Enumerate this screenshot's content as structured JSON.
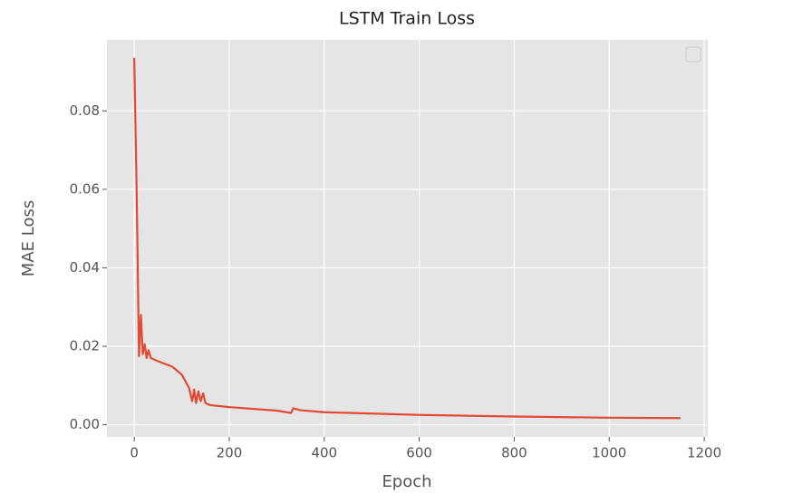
{
  "chart_data": {
    "type": "line",
    "title": "LSTM Train Loss",
    "x_label": "Epoch",
    "y_label": "MAE Loss",
    "x": [
      0,
      5,
      10,
      14,
      18,
      22,
      26,
      30,
      35,
      50,
      80,
      100,
      115,
      122,
      126,
      130,
      135,
      140,
      145,
      150,
      160,
      200,
      300,
      330,
      335,
      350,
      400,
      600,
      800,
      1000,
      1150
    ],
    "values": [
      0.0935,
      0.06,
      0.0175,
      0.028,
      0.018,
      0.0205,
      0.017,
      0.019,
      0.017,
      0.0162,
      0.0148,
      0.0128,
      0.0095,
      0.006,
      0.009,
      0.0055,
      0.0085,
      0.006,
      0.008,
      0.0055,
      0.005,
      0.0045,
      0.0036,
      0.003,
      0.0042,
      0.0037,
      0.0032,
      0.0025,
      0.0021,
      0.0018,
      0.0017
    ],
    "color": "#e24a33",
    "xlim": [
      -57.5,
      1207.5
    ],
    "xticks": [
      0,
      200,
      400,
      600,
      800,
      1000,
      1200
    ],
    "ylim": [
      -0.0031,
      0.0981
    ],
    "yticks": [
      {
        "value": 0,
        "label": "0.00"
      },
      0.02,
      0.04,
      0.06,
      0.08
    ],
    "grid": true
  }
}
